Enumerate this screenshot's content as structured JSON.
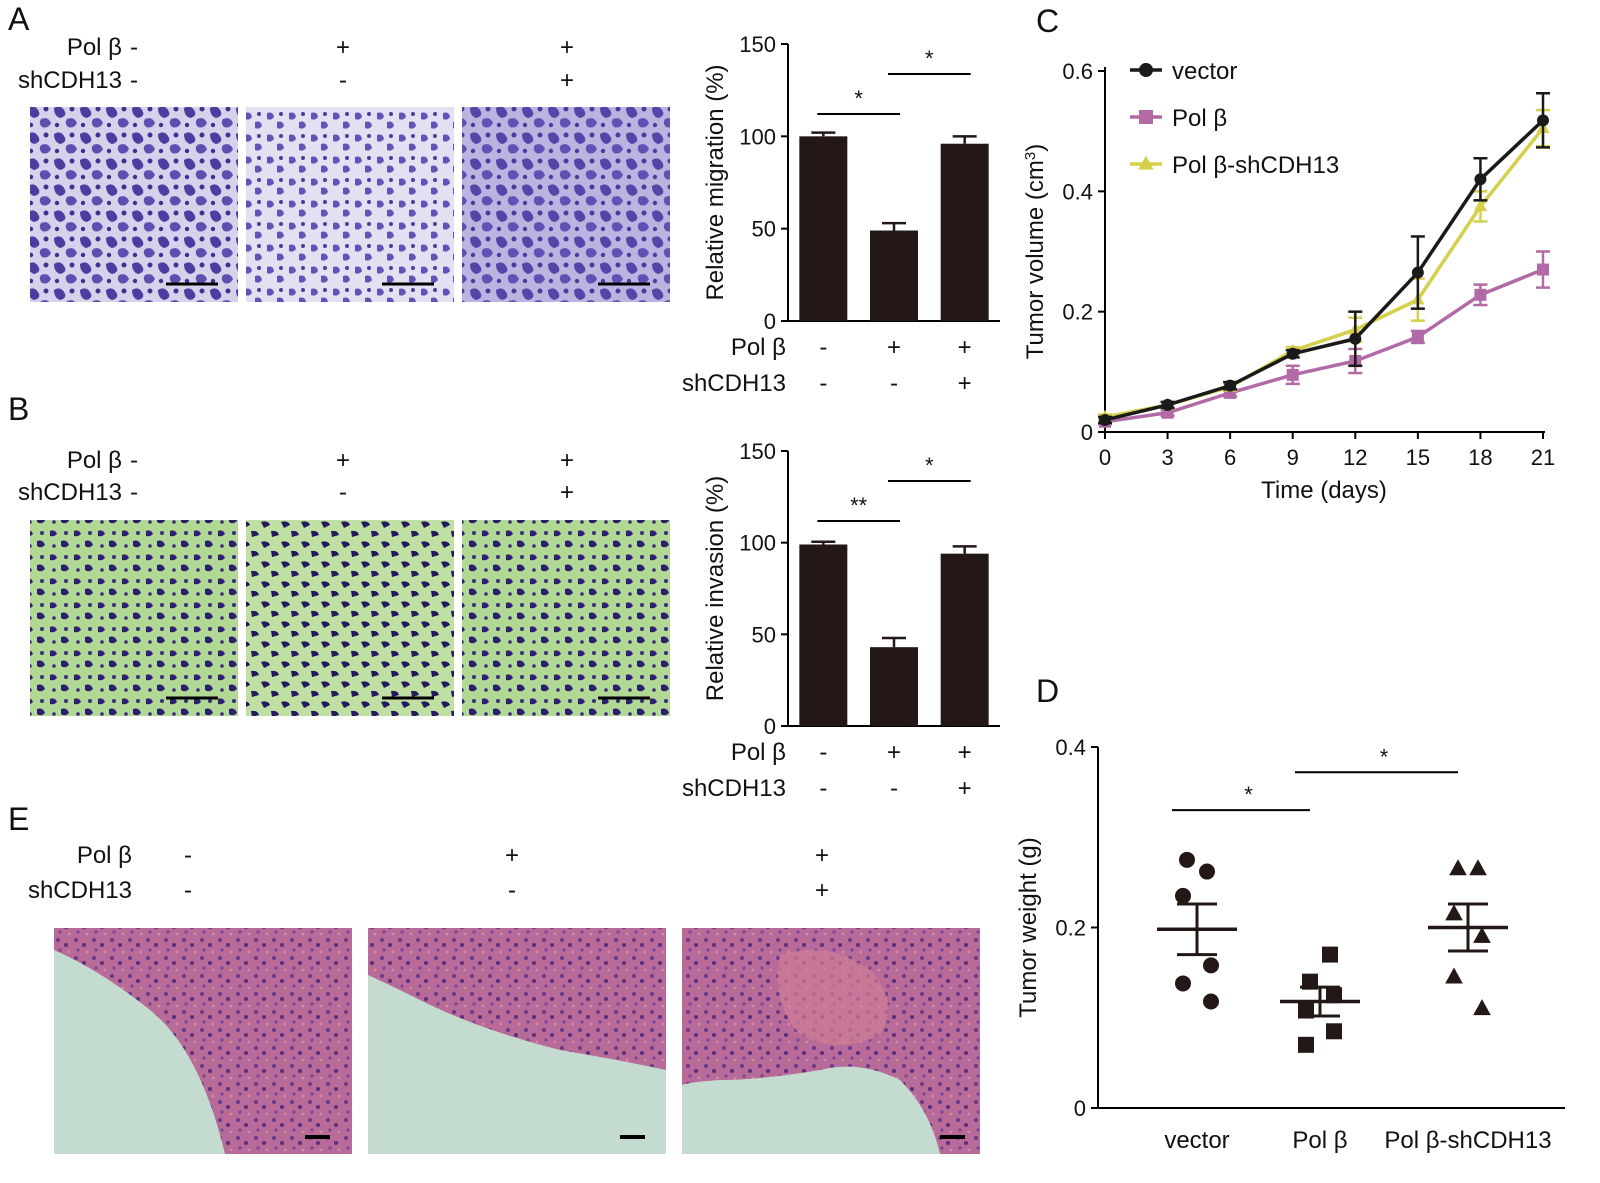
{
  "colors": {
    "bar": "#231815",
    "vector": "#1a1a1a",
    "polb": "#b26aa6",
    "polb_shcdh13": "#d6cf4a",
    "migration_stain_bg": "#d6d2ec",
    "migration_stain_cells": "#4a3fa0",
    "invasion_stain_bg": "#b2d896",
    "invasion_stain_cells": "#2c2070",
    "he_bg": "#c4dcd0",
    "he_tissue": "#a85a8c"
  },
  "panels": {
    "A": {
      "letter": "A",
      "rows": [
        {
          "label": "Pol β",
          "values": [
            "-",
            "+",
            "+"
          ]
        },
        {
          "label": "shCDH13",
          "values": [
            "-",
            "-",
            "+"
          ]
        }
      ]
    },
    "B": {
      "letter": "B",
      "rows": [
        {
          "label": "Pol β",
          "values": [
            "-",
            "+",
            "+"
          ]
        },
        {
          "label": "shCDH13",
          "values": [
            "-",
            "-",
            "+"
          ]
        }
      ]
    },
    "C": {
      "letter": "C"
    },
    "D": {
      "letter": "D"
    },
    "E": {
      "letter": "E",
      "rows": [
        {
          "label": "Pol β",
          "values": [
            "-",
            "+",
            "+"
          ]
        },
        {
          "label": "shCDH13",
          "values": [
            "-",
            "-",
            "+"
          ]
        }
      ]
    }
  },
  "chart_data": [
    {
      "id": "A-bar",
      "type": "bar",
      "ylabel": "Relative migration (%)",
      "ylim": [
        0,
        150
      ],
      "yticks": [
        0,
        50,
        100,
        150
      ],
      "values": [
        100,
        49,
        96
      ],
      "errors": [
        2,
        4,
        4
      ],
      "conditions": [
        {
          "label": "Pol β",
          "values": [
            "-",
            "+",
            "+"
          ]
        },
        {
          "label": "shCDH13",
          "values": [
            "-",
            "-",
            "+"
          ]
        }
      ],
      "significance": [
        {
          "from": 0,
          "to": 1,
          "label": "*"
        },
        {
          "from": 1,
          "to": 2,
          "label": "*"
        }
      ]
    },
    {
      "id": "B-bar",
      "type": "bar",
      "ylabel": "Relative invasion (%)",
      "ylim": [
        0,
        150
      ],
      "yticks": [
        0,
        50,
        100,
        150
      ],
      "values": [
        99,
        43,
        94
      ],
      "errors": [
        1.5,
        5,
        4
      ],
      "conditions": [
        {
          "label": "Pol β",
          "values": [
            "-",
            "+",
            "+"
          ]
        },
        {
          "label": "shCDH13",
          "values": [
            "-",
            "-",
            "+"
          ]
        }
      ],
      "significance": [
        {
          "from": 0,
          "to": 1,
          "label": "**"
        },
        {
          "from": 1,
          "to": 2,
          "label": "*"
        }
      ]
    },
    {
      "id": "C-line",
      "type": "line",
      "xlabel": "Time (days)",
      "ylabel": "Tumor volume (cm",
      "ylabel_sup": "3",
      "ylabel_close": ")",
      "x": [
        0,
        3,
        6,
        9,
        12,
        15,
        18,
        21
      ],
      "xlim": [
        0,
        21
      ],
      "ylim": [
        0,
        0.6
      ],
      "yticks": [
        0,
        0.2,
        0.4,
        0.6
      ],
      "ytick_labels": [
        "0",
        "0.2",
        "0.4",
        "0.6"
      ],
      "legend_position": "top-left",
      "series": [
        {
          "name": "vector",
          "marker": "circle",
          "color": "#1a1a1a",
          "values": [
            0.02,
            0.045,
            0.077,
            0.13,
            0.155,
            0.265,
            0.42,
            0.518
          ],
          "errors": [
            0.005,
            0.005,
            0.006,
            0.006,
            0.045,
            0.06,
            0.035,
            0.045
          ]
        },
        {
          "name": "Pol β",
          "marker": "square",
          "color": "#b26aa6",
          "values": [
            0.017,
            0.032,
            0.065,
            0.095,
            0.118,
            0.158,
            0.228,
            0.27
          ],
          "errors": [
            0.004,
            0.005,
            0.006,
            0.015,
            0.02,
            0.01,
            0.017,
            0.03
          ]
        },
        {
          "name": "Pol β-shCDH13",
          "marker": "triangle",
          "color": "#d6cf4a",
          "values": [
            0.025,
            0.045,
            0.075,
            0.135,
            0.17,
            0.22,
            0.375,
            0.505
          ],
          "errors": [
            0.004,
            0.005,
            0.006,
            0.006,
            0.02,
            0.035,
            0.025,
            0.03
          ]
        }
      ]
    },
    {
      "id": "D-scatter",
      "type": "scatter",
      "ylabel": "Tumor weight (g)",
      "ylim": [
        0,
        0.4
      ],
      "yticks": [
        0,
        0.2,
        0.4
      ],
      "ytick_labels": [
        "0",
        "0.2",
        "0.4"
      ],
      "categories": [
        "vector",
        "Pol β",
        "Pol β-shCDH13"
      ],
      "groups": [
        {
          "name": "vector",
          "marker": "circle",
          "points": [
            0.275,
            0.262,
            0.235,
            0.158,
            0.138,
            0.118
          ],
          "mean": 0.198,
          "sem": 0.028
        },
        {
          "name": "Pol β",
          "marker": "square",
          "points": [
            0.17,
            0.14,
            0.125,
            0.108,
            0.085,
            0.07
          ],
          "mean": 0.118,
          "sem": 0.016
        },
        {
          "name": "Pol β-shCDH13",
          "marker": "triangle",
          "points": [
            0.265,
            0.265,
            0.215,
            0.19,
            0.145,
            0.11
          ],
          "mean": 0.2,
          "sem": 0.026
        }
      ],
      "significance": [
        {
          "from": 0,
          "to": 1,
          "label": "*"
        },
        {
          "from": 1,
          "to": 2,
          "label": "*"
        }
      ]
    }
  ]
}
